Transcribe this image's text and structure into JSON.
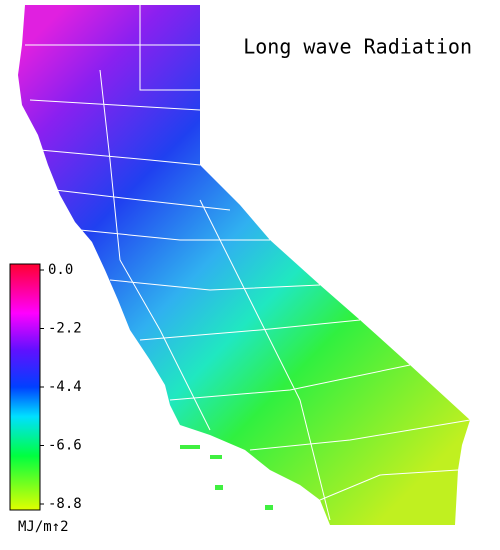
{
  "title": "Long wave Radiation",
  "colorbar": {
    "range": [
      -8.8,
      0
    ],
    "ticks": [
      {
        "value": 0,
        "label": "0.0"
      },
      -2.2,
      -4.4,
      -6.6,
      -8.8
    ],
    "unit": "MJ/m↑2"
  }
}
